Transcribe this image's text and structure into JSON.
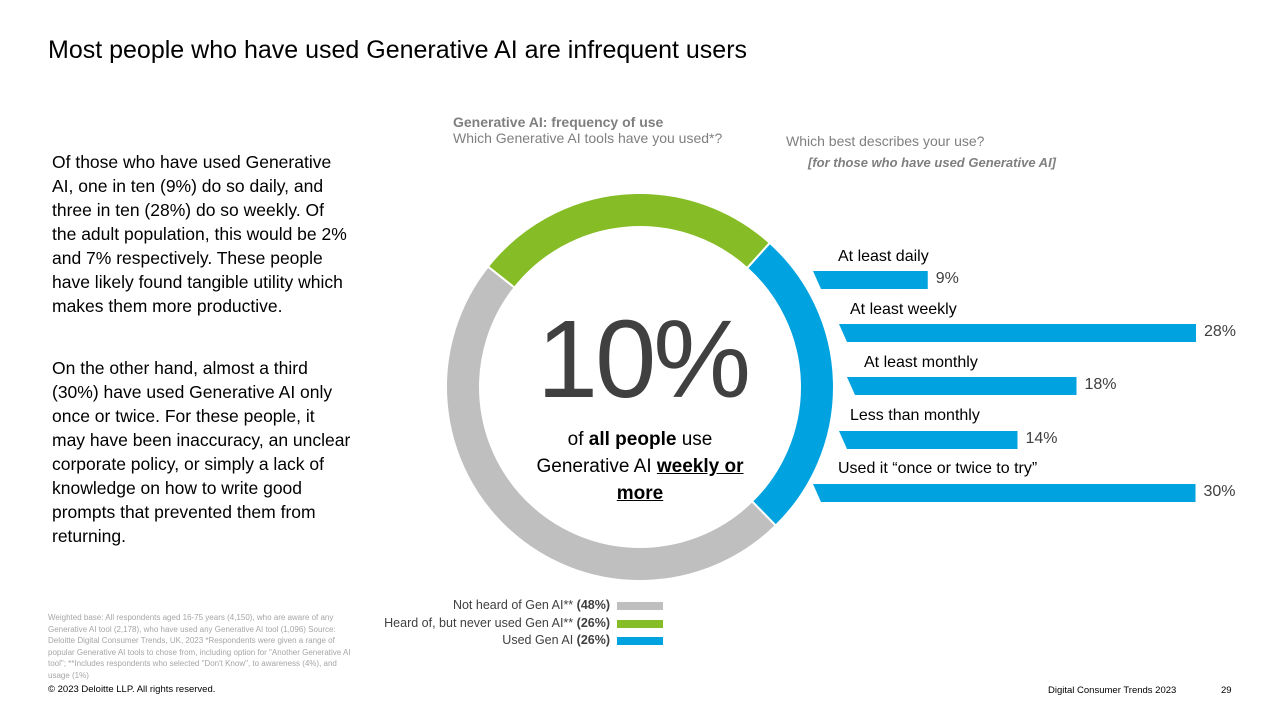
{
  "slide": {
    "title": "Most people who have used Generative AI are infrequent users",
    "paragraph_1": "Of those who have used Generative AI, one in ten (9%) do so daily, and three in ten (28%) do so weekly. Of the adult population, this would be 2% and 7% respectively. These people have likely found tangible utility which makes them more productive.",
    "paragraph_2": "On the other hand, almost a third (30%) have used Generative AI only once or twice. For these people, it may have been inaccuracy, an unclear corporate policy, or simply a lack of knowledge on how to write good prompts that prevented them from returning.",
    "footnote": "Weighted base: All respondents aged 16-75 years (4,150), who are aware of any Generative AI tool (2,178), who have used any Generative AI tool (1,096) Source: Deloitte Digital Consumer Trends, UK, 2023 *Respondents were given a range of popular Generative AI tools to chose from, including option for \"Another Generative AI tool\"; **Includes respondents who selected \"Don't Know\", to awareness (4%), and usage (1%)",
    "copyright": "© 2023 Deloitte LLP. All rights reserved.",
    "footer_title": "Digital Consumer Trends 2023",
    "page_number": "29"
  },
  "chart_data": [
    {
      "type": "pie",
      "title": "Generative AI: frequency of use",
      "subtitle": "Which Generative AI tools have you used*?",
      "center_value": "10%",
      "center_caption": {
        "pre": "of ",
        "bold": "all people",
        "mid": " use Generative AI ",
        "underlined": "weekly or more"
      },
      "slices": [
        {
          "label": "Used Gen AI",
          "value": 26,
          "display": "(26%)",
          "color": "#00a3e0"
        },
        {
          "label": "Not heard of Gen AI**",
          "value": 48,
          "display": "(48%)",
          "color": "#bfbfbf"
        },
        {
          "label": "Heard of, but never used Gen AI**",
          "value": 26,
          "display": "(26%)",
          "color": "#86bc25"
        }
      ],
      "legend": [
        {
          "label": "Not heard of Gen AI**",
          "display": "(48%)",
          "color": "#bfbfbf"
        },
        {
          "label": "Heard of, but never used Gen AI**",
          "display": "(26%)",
          "color": "#86bc25"
        },
        {
          "label": "Used Gen AI",
          "display": "(26%)",
          "color": "#00a3e0"
        }
      ],
      "legend_position": "bottom-left"
    },
    {
      "type": "bar",
      "orientation": "horizontal",
      "title": "Which best describes your use?",
      "subtitle": "[for those who have used Generative AI]",
      "categories": [
        "At least daily",
        "At least weekly",
        "At least monthly",
        "Less than monthly",
        "Used it “once or twice to try”"
      ],
      "values": [
        9,
        28,
        18,
        14,
        30
      ],
      "value_labels": [
        "9%",
        "28%",
        "18%",
        "14%",
        "30%"
      ],
      "color": "#00a3e0",
      "xlim": [
        0,
        30
      ]
    }
  ]
}
